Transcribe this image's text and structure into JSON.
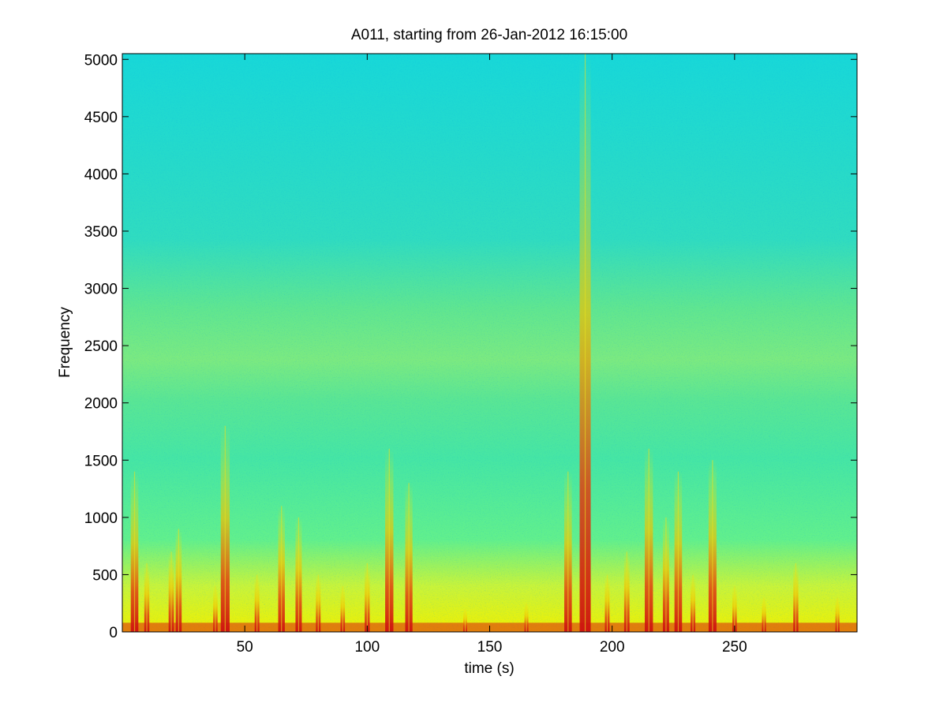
{
  "chart_data": {
    "type": "heatmap",
    "title": "A011, starting from 26-Jan-2012 16:15:00",
    "xlabel": "time (s)",
    "ylabel": "Frequency",
    "xlim": [
      0,
      300
    ],
    "ylim": [
      0,
      5050
    ],
    "xticks": [
      50,
      100,
      150,
      200,
      250
    ],
    "yticks": [
      0,
      500,
      1000,
      1500,
      2000,
      2500,
      3000,
      3500,
      4000,
      4500,
      5000
    ],
    "colormap": "jet",
    "grid": false,
    "legend": "none",
    "colors": {
      "background_level": "#1ee0c8",
      "mid_level": "#8ef07a",
      "high_level": "#f0f000",
      "peak_level": "#cc1010"
    },
    "energy_bursts": [
      {
        "t": 5,
        "f_max": 1400
      },
      {
        "t": 10,
        "f_max": 600
      },
      {
        "t": 20,
        "f_max": 700
      },
      {
        "t": 23,
        "f_max": 900
      },
      {
        "t": 38,
        "f_max": 400
      },
      {
        "t": 42,
        "f_max": 1800
      },
      {
        "t": 55,
        "f_max": 500
      },
      {
        "t": 65,
        "f_max": 1100
      },
      {
        "t": 72,
        "f_max": 1000
      },
      {
        "t": 80,
        "f_max": 500
      },
      {
        "t": 90,
        "f_max": 400
      },
      {
        "t": 100,
        "f_max": 600
      },
      {
        "t": 109,
        "f_max": 1600
      },
      {
        "t": 117,
        "f_max": 1300
      },
      {
        "t": 140,
        "f_max": 200
      },
      {
        "t": 165,
        "f_max": 250
      },
      {
        "t": 182,
        "f_max": 1400
      },
      {
        "t": 189,
        "f_max": 5050
      },
      {
        "t": 198,
        "f_max": 500
      },
      {
        "t": 206,
        "f_max": 700
      },
      {
        "t": 215,
        "f_max": 1600
      },
      {
        "t": 222,
        "f_max": 1000
      },
      {
        "t": 227,
        "f_max": 1400
      },
      {
        "t": 233,
        "f_max": 500
      },
      {
        "t": 241,
        "f_max": 1500
      },
      {
        "t": 250,
        "f_max": 400
      },
      {
        "t": 262,
        "f_max": 300
      },
      {
        "t": 275,
        "f_max": 600
      },
      {
        "t": 292,
        "f_max": 300
      }
    ]
  }
}
